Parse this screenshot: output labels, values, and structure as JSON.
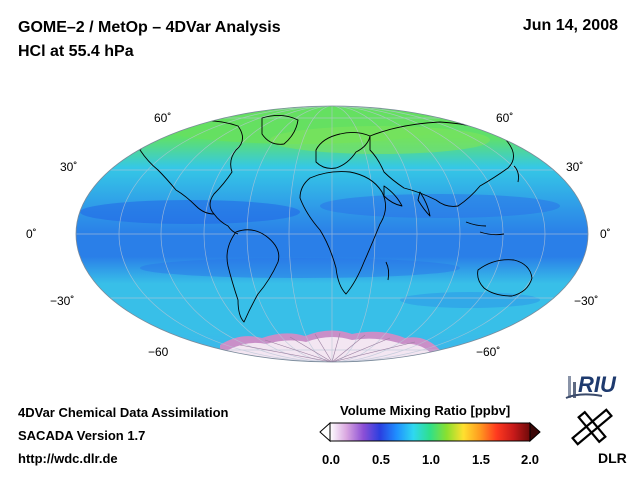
{
  "header": {
    "title_line1": "GOME–2 / MetOp – 4DVar Analysis",
    "title_line2": "HCl at 55.4 hPa",
    "date": "Jun 14, 2008"
  },
  "map": {
    "projection": "Hammer-Aitoff (global)",
    "latitude_labels_left": [
      "60˚",
      "30˚",
      "0˚",
      "−30˚",
      "−60"
    ],
    "latitude_labels_right": [
      "60˚",
      "30˚",
      "0˚",
      "−30˚",
      "−60˚"
    ],
    "colors": {
      "polar_north": "#5fe06a",
      "north_mid": "#35c8e6",
      "equatorial_band": "#2a7fe8",
      "south_mid": "#38bfe8",
      "antarctic_edge": "#c98fc8",
      "antarctic_core": "#f3e6f2"
    }
  },
  "colorbar": {
    "title": "Volume Mixing Ratio [ppbv]",
    "ticks": [
      "0.0",
      "0.5",
      "1.0",
      "1.5",
      "2.0"
    ],
    "colors": [
      "#ffffff",
      "#d9a6e0",
      "#8c4fd6",
      "#2a3fe0",
      "#1f8fff",
      "#2fd8f0",
      "#2fe08a",
      "#8ae02f",
      "#ffe02f",
      "#ff9a1f",
      "#ff3a1f",
      "#c81a1a",
      "#6e0a0a"
    ]
  },
  "footer": {
    "line1": "4DVar Chemical Data Assimilation",
    "line2": "SACADA Version 1.7",
    "url": "http://wdc.dlr.de"
  },
  "logos": {
    "riu_text": "RIU",
    "dlr_text": "DLR"
  }
}
